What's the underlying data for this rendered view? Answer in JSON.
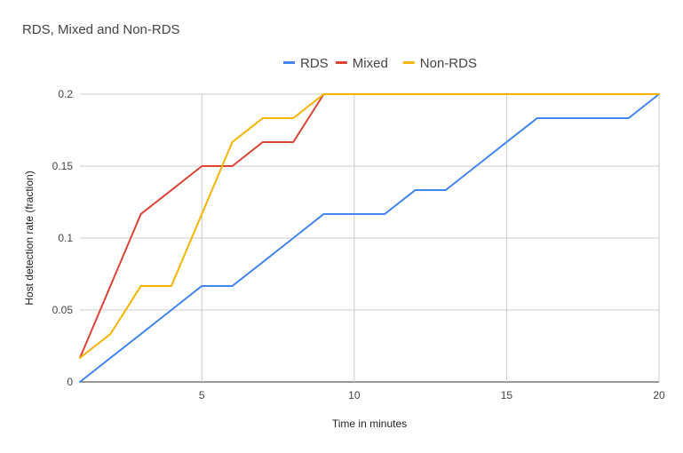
{
  "chart_data": {
    "type": "line",
    "title": "RDS, Mixed and Non-RDS",
    "xlabel": "Time in minutes",
    "ylabel": "Host detection rate (fraction)",
    "xlim": [
      1,
      20
    ],
    "ylim": [
      0,
      0.2
    ],
    "x_ticks": [
      5,
      10,
      15,
      20
    ],
    "y_ticks": [
      0,
      0.05,
      0.1,
      0.15,
      0.2
    ],
    "x_tick_labels": [
      "5",
      "10",
      "15",
      "20"
    ],
    "y_tick_labels": [
      "0",
      "0.05",
      "0.1",
      "0.15",
      "0.2"
    ],
    "grid": true,
    "legend_position": "top",
    "x": [
      1,
      2,
      3,
      4,
      5,
      6,
      7,
      8,
      9,
      10,
      11,
      12,
      13,
      14,
      15,
      16,
      17,
      18,
      19,
      20
    ],
    "series": [
      {
        "name": "RDS",
        "color": "#4285f4",
        "values": [
          0,
          0.0167,
          0.0333,
          0.05,
          0.0667,
          0.0667,
          0.0833,
          0.1,
          0.1167,
          0.1167,
          0.1167,
          0.1333,
          0.1333,
          0.15,
          0.1667,
          0.1833,
          0.1833,
          0.1833,
          0.1833,
          0.2
        ]
      },
      {
        "name": "Mixed",
        "color": "#db4437",
        "values": [
          0.0167,
          0.0667,
          0.1167,
          0.1333,
          0.15,
          0.15,
          0.1667,
          0.1667,
          0.2,
          0.2,
          0.2,
          0.2,
          0.2,
          0.2,
          0.2,
          0.2,
          0.2,
          0.2,
          0.2,
          0.2
        ]
      },
      {
        "name": "Non-RDS",
        "color": "#f4b400",
        "values": [
          0.0167,
          0.0333,
          0.0667,
          0.0667,
          0.1167,
          0.1667,
          0.1833,
          0.1833,
          0.2,
          0.2,
          0.2,
          0.2,
          0.2,
          0.2,
          0.2,
          0.2,
          0.2,
          0.2,
          0.2,
          0.2
        ]
      }
    ]
  }
}
